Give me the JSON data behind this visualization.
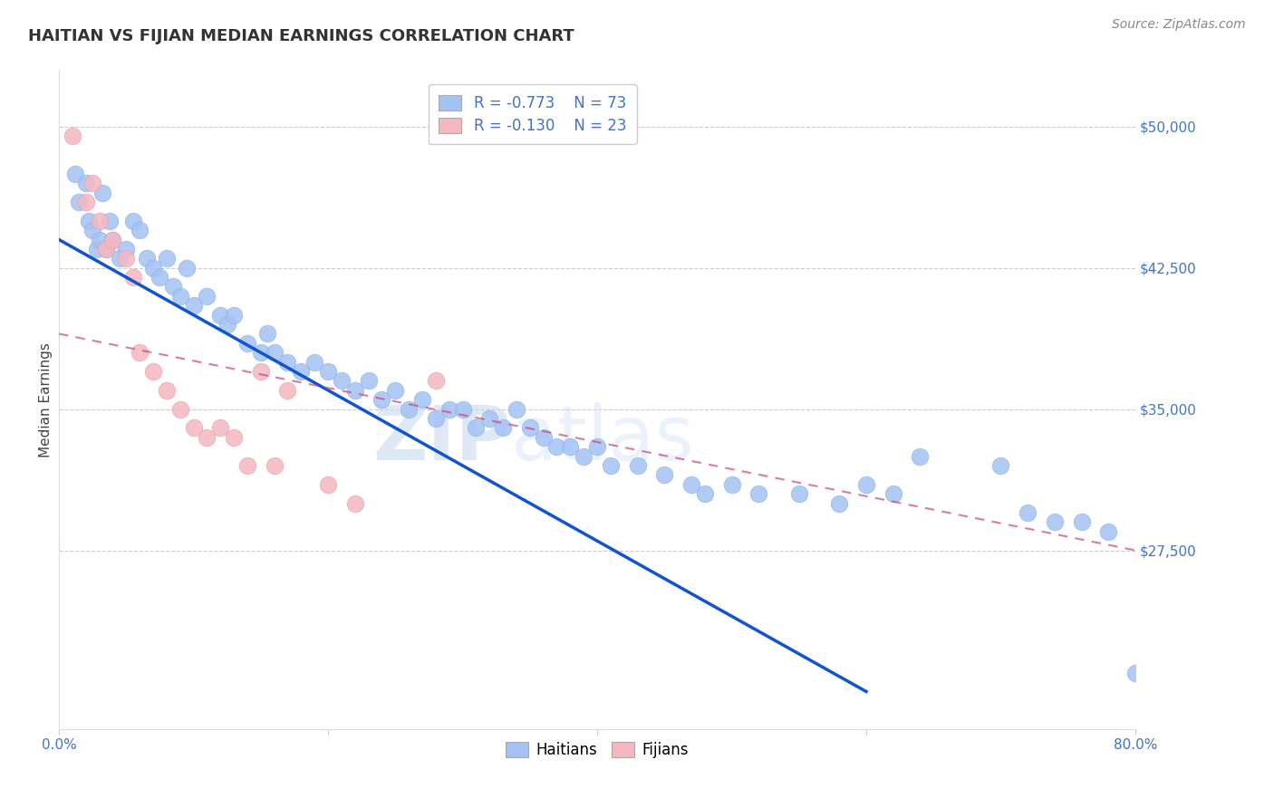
{
  "title": "HAITIAN VS FIJIAN MEDIAN EARNINGS CORRELATION CHART",
  "source": "Source: ZipAtlas.com",
  "ylabel": "Median Earnings",
  "xlim": [
    0.0,
    80.0
  ],
  "ylim": [
    18000,
    53000
  ],
  "yticks": [
    27500,
    35000,
    42500,
    50000
  ],
  "ytick_labels": [
    "$27,500",
    "$35,000",
    "$42,500",
    "$50,000"
  ],
  "xticks": [
    0.0,
    20.0,
    40.0,
    60.0,
    80.0
  ],
  "xtick_labels": [
    "0.0%",
    "",
    "",
    "",
    "80.0%"
  ],
  "blue_R": "R = -0.773",
  "blue_N": "N = 73",
  "pink_R": "R = -0.130",
  "pink_N": "N = 23",
  "blue_color": "#a4c2f4",
  "pink_color": "#f4b8c1",
  "blue_line_color": "#1155cc",
  "pink_line_color": "#cc4477",
  "axis_color": "#4472c4",
  "watermark_zip": "ZIP",
  "watermark_atlas": "atlas",
  "blue_scatter_x": [
    1.2,
    1.5,
    2.0,
    2.2,
    2.5,
    2.8,
    3.0,
    3.2,
    3.5,
    3.8,
    4.0,
    4.5,
    5.0,
    5.5,
    6.0,
    6.5,
    7.0,
    7.5,
    8.0,
    8.5,
    9.0,
    9.5,
    10.0,
    11.0,
    12.0,
    12.5,
    13.0,
    14.0,
    15.0,
    15.5,
    16.0,
    17.0,
    18.0,
    19.0,
    20.0,
    21.0,
    22.0,
    23.0,
    24.0,
    25.0,
    26.0,
    27.0,
    28.0,
    29.0,
    30.0,
    31.0,
    32.0,
    33.0,
    34.0,
    35.0,
    36.0,
    37.0,
    38.0,
    39.0,
    40.0,
    41.0,
    43.0,
    45.0,
    47.0,
    48.0,
    50.0,
    52.0,
    55.0,
    58.0,
    60.0,
    62.0,
    64.0,
    70.0,
    72.0,
    74.0,
    76.0,
    78.0,
    80.0
  ],
  "blue_scatter_y": [
    47500,
    46000,
    47000,
    45000,
    44500,
    43500,
    44000,
    46500,
    43500,
    45000,
    44000,
    43000,
    43500,
    45000,
    44500,
    43000,
    42500,
    42000,
    43000,
    41500,
    41000,
    42500,
    40500,
    41000,
    40000,
    39500,
    40000,
    38500,
    38000,
    39000,
    38000,
    37500,
    37000,
    37500,
    37000,
    36500,
    36000,
    36500,
    35500,
    36000,
    35000,
    35500,
    34500,
    35000,
    35000,
    34000,
    34500,
    34000,
    35000,
    34000,
    33500,
    33000,
    33000,
    32500,
    33000,
    32000,
    32000,
    31500,
    31000,
    30500,
    31000,
    30500,
    30500,
    30000,
    31000,
    30500,
    32500,
    32000,
    29500,
    29000,
    29000,
    28500,
    21000
  ],
  "pink_scatter_x": [
    1.0,
    2.0,
    2.5,
    3.0,
    3.5,
    4.0,
    5.0,
    5.5,
    6.0,
    7.0,
    8.0,
    9.0,
    10.0,
    11.0,
    12.0,
    13.0,
    14.0,
    15.0,
    16.0,
    17.0,
    20.0,
    22.0,
    28.0
  ],
  "pink_scatter_y": [
    49500,
    46000,
    47000,
    45000,
    43500,
    44000,
    43000,
    42000,
    38000,
    37000,
    36000,
    35000,
    34000,
    33500,
    34000,
    33500,
    32000,
    37000,
    32000,
    36000,
    31000,
    30000,
    36500
  ],
  "blue_line_x0": 0.0,
  "blue_line_y0": 44000,
  "blue_line_x1": 60.0,
  "blue_line_y1": 20000,
  "pink_line_x0": 0.0,
  "pink_line_y0": 39000,
  "pink_line_x1": 80.0,
  "pink_line_y1": 27500
}
